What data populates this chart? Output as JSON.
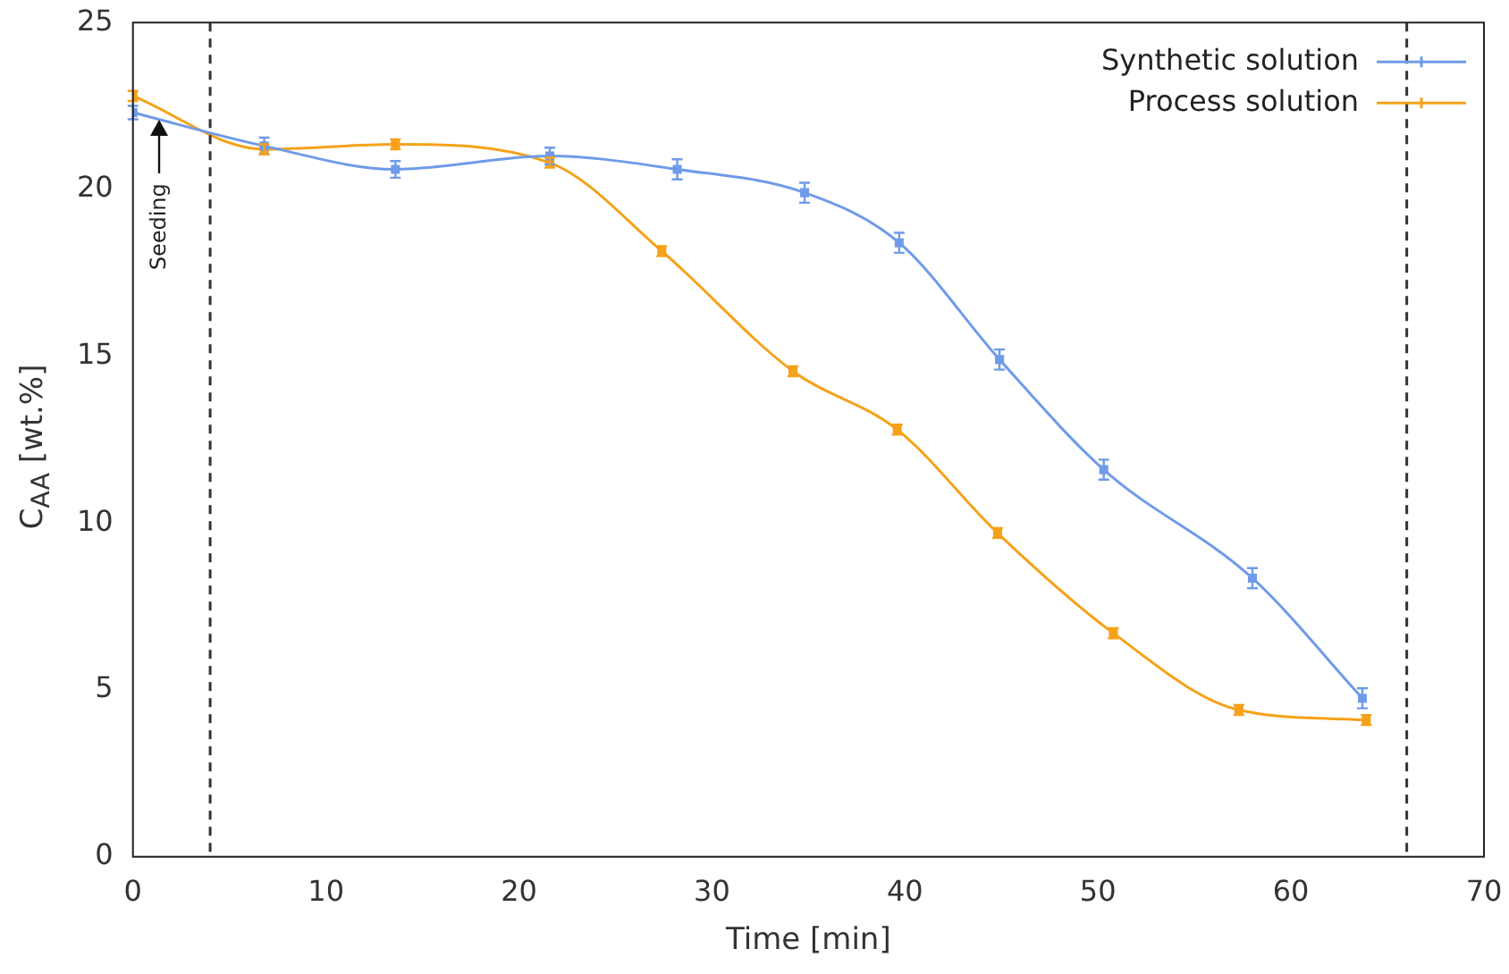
{
  "chart_data": {
    "type": "line",
    "xlabel": "Time [min]",
    "ylabel": "C$_{AA}$ [wt.%]",
    "xlim": [
      0,
      70
    ],
    "xticks": [
      0,
      10,
      20,
      30,
      40,
      50,
      60,
      70
    ],
    "ylim": [
      0,
      25
    ],
    "yticks": [
      0,
      5,
      10,
      15,
      20,
      25
    ],
    "grid": false,
    "legend": "top right",
    "marker": "square",
    "line_style": "solid",
    "series": [
      {
        "name": "Synthetic solution",
        "color": "#6f9be8",
        "x": [
          0,
          6.8,
          13.6,
          21.6,
          28.2,
          34.8,
          39.7,
          44.9,
          50.3,
          58,
          63.7
        ],
        "values": [
          22.3,
          21.3,
          20.6,
          21.0,
          20.6,
          19.9,
          18.4,
          14.9,
          11.6,
          8.35,
          4.75
        ],
        "errors": [
          0.2,
          0.25,
          0.25,
          0.25,
          0.3,
          0.3,
          0.3,
          0.3,
          0.3,
          0.3,
          0.3
        ]
      },
      {
        "name": "Process solution",
        "color": "#f5a21a",
        "x": [
          0,
          6.8,
          13.6,
          21.6,
          27.4,
          34.2,
          39.6,
          44.8,
          50.8,
          57.3,
          63.9
        ],
        "values": [
          22.8,
          21.2,
          21.35,
          20.8,
          18.15,
          14.55,
          12.8,
          9.7,
          6.7,
          4.4,
          4.1
        ],
        "errors": [
          0.15,
          0.15,
          0.15,
          0.15,
          0.15,
          0.15,
          0.15,
          0.15,
          0.15,
          0.15,
          0.15
        ]
      }
    ],
    "ref_lines": [
      {
        "axis": "x",
        "value": 4,
        "color": "#333333",
        "line_style": "dashed"
      },
      {
        "axis": "x",
        "value": 66,
        "color": "#333333",
        "line_style": "dashed"
      }
    ],
    "annotations": [
      "Seeding"
    ]
  }
}
